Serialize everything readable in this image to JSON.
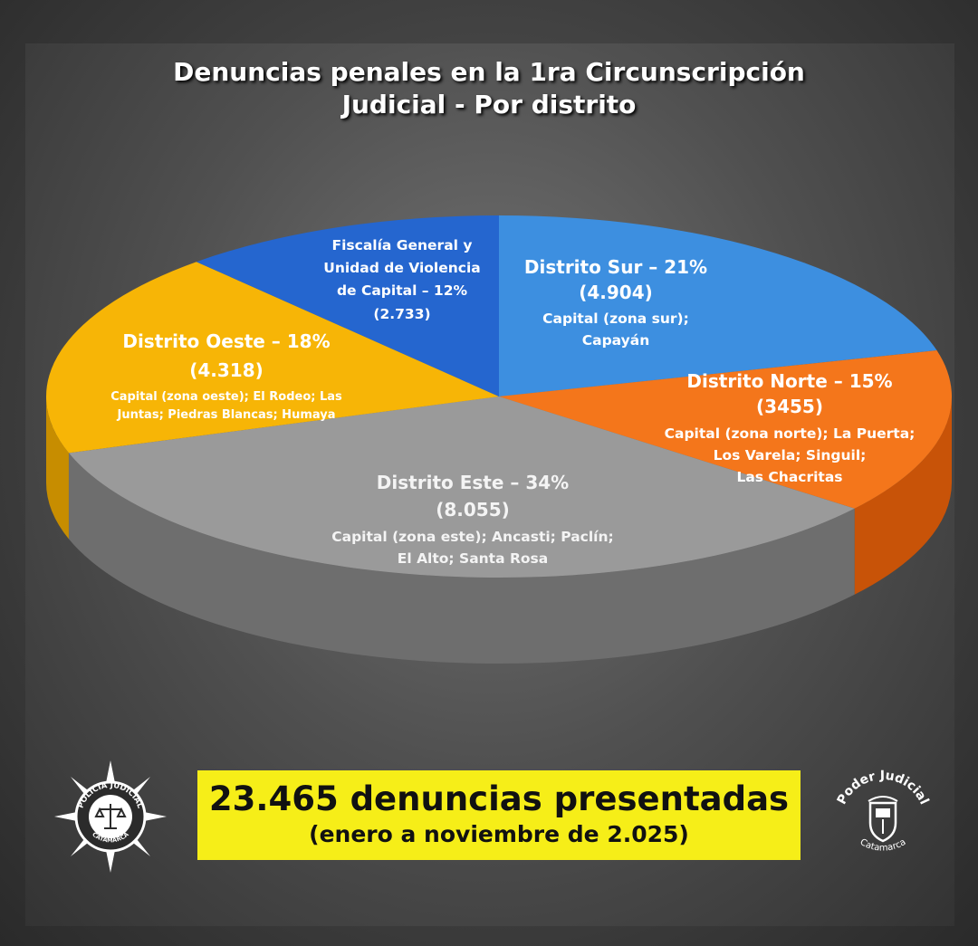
{
  "title": {
    "line1": "Denuncias penales en la 1ra Circunscripción",
    "line2": "Judicial - Por distrito"
  },
  "chart_data": {
    "type": "pie",
    "title": "Denuncias penales en la 1ra Circunscripción Judicial - Por distrito",
    "slices": [
      {
        "name": "Distrito Sur",
        "percent": 21,
        "value": 4904,
        "value_label": "(4.904)",
        "detail": [
          "Capital (zona sur);",
          "Capayán"
        ],
        "color": "#3d8fe0",
        "side_color": "#2a6fb5"
      },
      {
        "name": "Distrito Norte",
        "percent": 15,
        "value": 3455,
        "value_label": "(3455)",
        "detail": [
          "Capital (zona norte); La Puerta;",
          "Los Varela; Singuil;",
          "Las Chacritas"
        ],
        "color": "#f4761b",
        "side_color": "#c85308"
      },
      {
        "name": "Distrito Este",
        "percent": 34,
        "value": 8055,
        "value_label": "(8.055)",
        "detail": [
          "Capital (zona este); Ancasti; Paclín;",
          "El Alto; Santa Rosa"
        ],
        "color": "#9a9a9a",
        "side_color": "#6e6e6e"
      },
      {
        "name": "Distrito Oeste",
        "percent": 18,
        "value": 4318,
        "value_label": "(4.318)",
        "detail": [
          "Capital (zona oeste); El Rodeo; Las",
          "Juntas; Piedras Blancas; Humaya"
        ],
        "color": "#f7b506",
        "side_color": "#c78d00"
      },
      {
        "name": "Fiscalía General y Unidad de Violencia de Capital",
        "percent": 12,
        "value": 2733,
        "value_label": "(2.733)",
        "detail": [],
        "color": "#2566cf",
        "side_color": "#1a4b9a"
      }
    ],
    "labels": {
      "sur": {
        "head": "Distrito Sur – 21%",
        "value": "(4.904)",
        "l1": "Capital (zona sur);",
        "l2": "Capayán"
      },
      "norte": {
        "head": "Distrito Norte – 15%",
        "value": "(3455)",
        "l1": "Capital (zona norte); La Puerta;",
        "l2": "Los Varela; Singuil;",
        "l3": "Las Chacritas"
      },
      "este": {
        "head": "Distrito Este – 34%",
        "value": "(8.055)",
        "l1": "Capital (zona este); Ancasti; Paclín;",
        "l2": "El Alto; Santa Rosa"
      },
      "oeste": {
        "head": "Distrito Oeste – 18%",
        "value": "(4.318)",
        "l1": "Capital (zona oeste); El Rodeo; Las",
        "l2": "Juntas; Piedras Blancas; Humaya"
      },
      "fiscalia": {
        "l1": "Fiscalía General y",
        "l2": "Unidad de Violencia",
        "l3": "de Capital – 12%",
        "l4": "(2.733)"
      }
    }
  },
  "total": {
    "main": "23.465 denuncias presentadas",
    "sub": "(enero a noviembre de 2.025)"
  },
  "logos": {
    "left": {
      "ring_text": "POLICIA JUDICIAL",
      "bottom_text": "CATAMARCA",
      "icon": "scales-of-justice-icon"
    },
    "right": {
      "top_text": "Poder Judicial",
      "bottom_text": "Catamarca",
      "icon": "coat-of-arms-icon"
    }
  }
}
